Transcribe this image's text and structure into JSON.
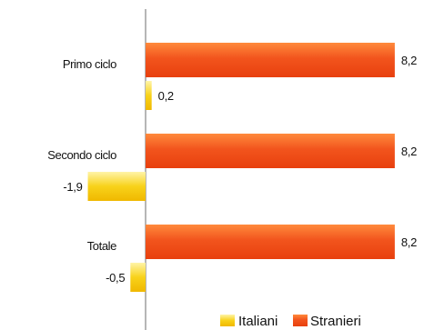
{
  "chart_data": {
    "type": "bar",
    "orientation": "horizontal",
    "categories": [
      "Primo ciclo",
      "Secondo ciclo",
      "Totale"
    ],
    "series": [
      {
        "name": "Stranieri",
        "values": [
          8.2,
          8.2,
          8.2
        ],
        "labels": [
          "8,2",
          "8,2",
          "8,2"
        ],
        "color": "#f2541d"
      },
      {
        "name": "Italiani",
        "values": [
          0.2,
          -1.9,
          -0.5
        ],
        "labels": [
          "0,2",
          "-1,9",
          "-0,5"
        ],
        "color": "#f5c400"
      }
    ],
    "legend_position": "bottom-right",
    "grid": false
  }
}
